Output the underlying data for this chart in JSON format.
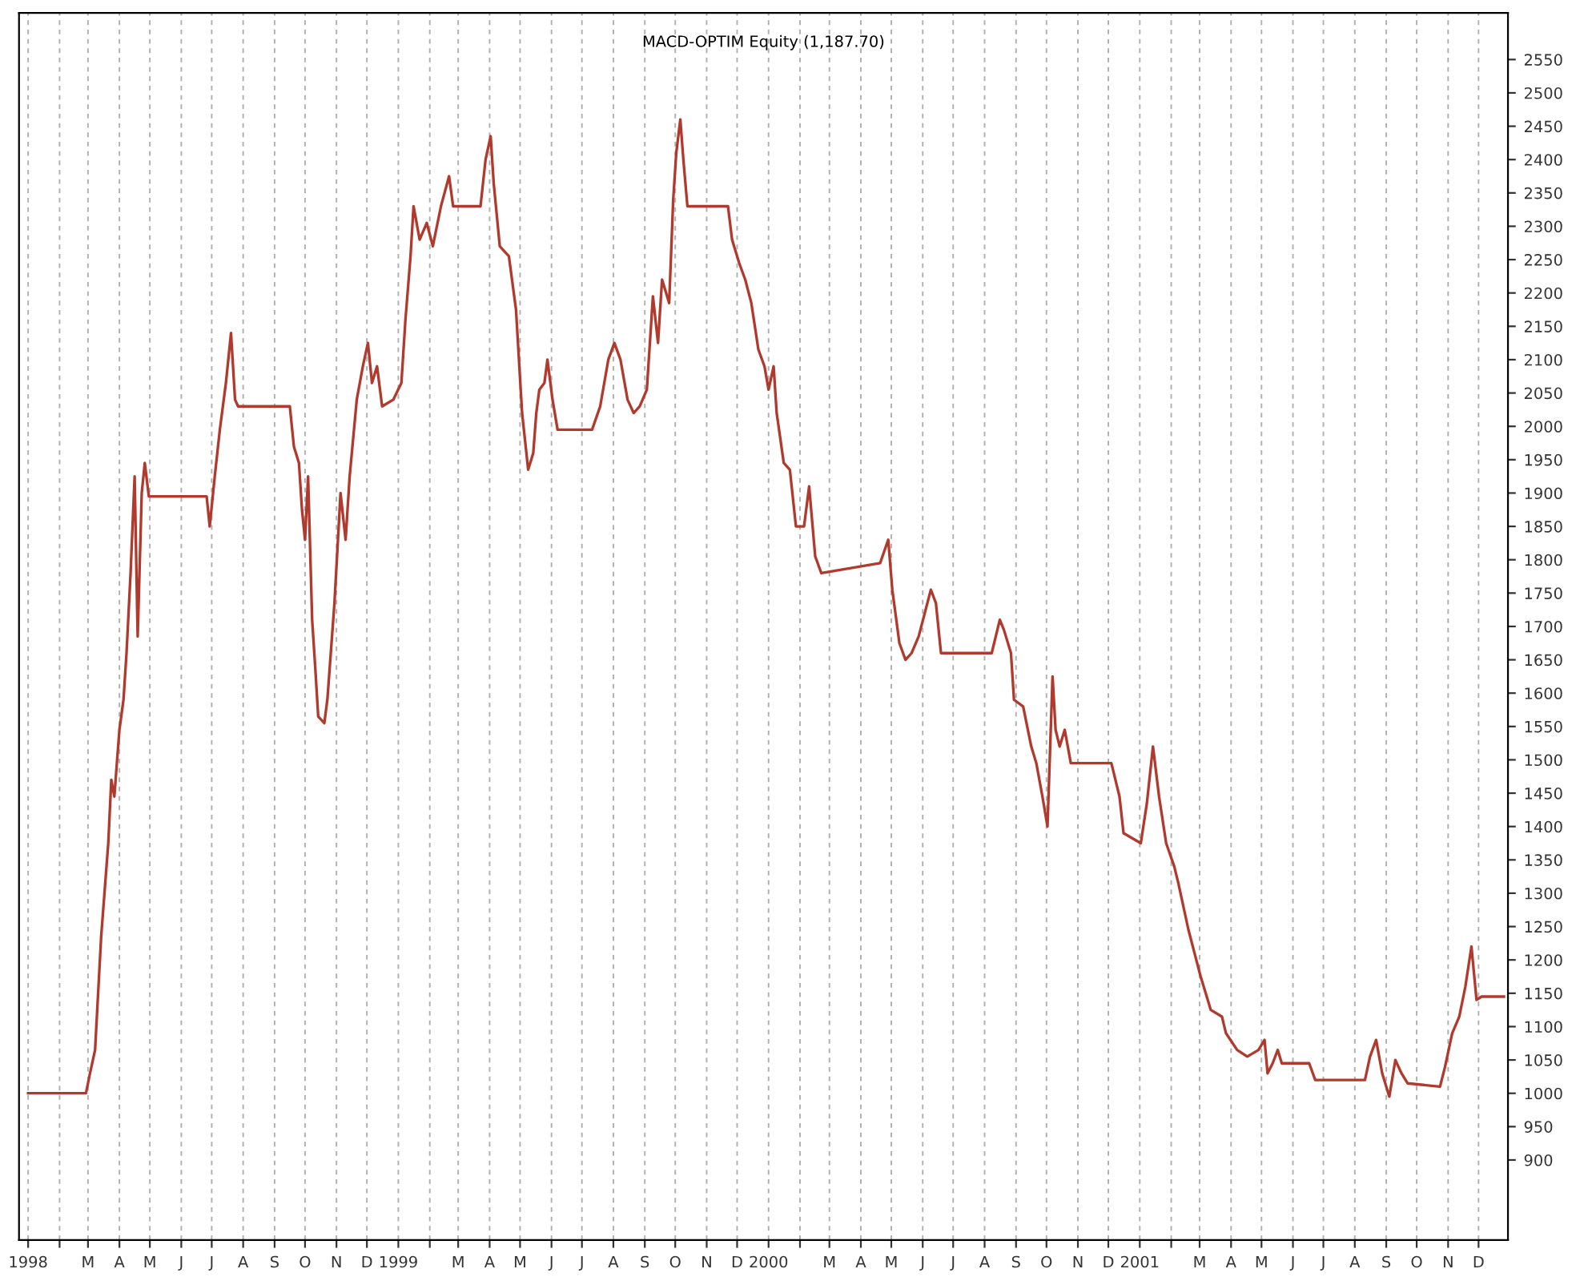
{
  "chart_data": {
    "type": "line",
    "title": "MACD-OPTIM Equity (1,187.70)",
    "x": [
      "1998-01-01",
      "1998-02-27",
      "1998-03-03",
      "1998-03-08",
      "1998-03-14",
      "1998-03-21",
      "1998-03-24",
      "1998-03-27",
      "1998-04-01",
      "1998-04-05",
      "1998-04-08",
      "1998-04-12",
      "1998-04-16",
      "1998-04-19",
      "1998-04-23",
      "1998-04-26",
      "1998-04-30",
      "1998-06-26",
      "1998-06-29",
      "1998-07-04",
      "1998-07-09",
      "1998-07-15",
      "1998-07-20",
      "1998-07-24",
      "1998-07-27",
      "1998-09-16",
      "1998-09-20",
      "1998-09-25",
      "1998-09-28",
      "1998-10-01",
      "1998-10-04",
      "1998-10-08",
      "1998-10-11",
      "1998-10-14",
      "1998-10-20",
      "1998-10-23",
      "1998-10-30",
      "1998-11-05",
      "1998-11-10",
      "1998-11-14",
      "1998-11-21",
      "1998-11-27",
      "1998-12-02",
      "1998-12-06",
      "1998-12-11",
      "1998-12-16",
      "1998-12-27",
      "1999-01-04",
      "1999-01-08",
      "1999-01-13",
      "1999-01-16",
      "1999-01-22",
      "1999-01-29",
      "1999-02-04",
      "1999-02-12",
      "1999-02-20",
      "1999-02-24",
      "1999-03-23",
      "1999-03-28",
      "1999-04-02",
      "1999-04-05",
      "1999-04-11",
      "1999-04-20",
      "1999-04-27",
      "1999-05-03",
      "1999-05-09",
      "1999-05-14",
      "1999-05-17",
      "1999-05-20",
      "1999-05-25",
      "1999-05-28",
      "1999-06-02",
      "1999-06-07",
      "1999-07-11",
      "1999-07-19",
      "1999-07-27",
      "1999-08-02",
      "1999-08-08",
      "1999-08-15",
      "1999-08-21",
      "1999-08-27",
      "1999-09-03",
      "1999-09-09",
      "1999-09-14",
      "1999-09-18",
      "1999-09-25",
      "1999-09-29",
      "1999-10-02",
      "1999-10-06",
      "1999-10-09",
      "1999-10-13",
      "1999-11-22",
      "1999-11-26",
      "1999-12-03",
      "1999-12-09",
      "1999-12-15",
      "1999-12-22",
      "1999-12-28",
      "2000-01-01",
      "2000-01-06",
      "2000-01-09",
      "2000-01-16",
      "2000-01-22",
      "2000-01-28",
      "2000-02-05",
      "2000-02-10",
      "2000-02-16",
      "2000-02-22",
      "2000-04-20",
      "2000-04-28",
      "2000-05-02",
      "2000-05-09",
      "2000-05-15",
      "2000-05-21",
      "2000-05-28",
      "2000-06-03",
      "2000-06-09",
      "2000-06-14",
      "2000-06-19",
      "2000-08-08",
      "2000-08-16",
      "2000-08-20",
      "2000-08-27",
      "2000-08-30",
      "2000-09-08",
      "2000-09-16",
      "2000-09-21",
      "2000-09-27",
      "2000-10-02",
      "2000-10-07",
      "2000-10-10",
      "2000-10-14",
      "2000-10-19",
      "2000-10-25",
      "2000-12-04",
      "2000-12-12",
      "2000-12-16",
      "2001-01-02",
      "2001-01-08",
      "2001-01-14",
      "2001-01-20",
      "2001-01-27",
      "2001-02-04",
      "2001-02-08",
      "2001-02-18",
      "2001-02-24",
      "2001-03-02",
      "2001-03-07",
      "2001-03-12",
      "2001-03-23",
      "2001-03-27",
      "2001-04-07",
      "2001-04-17",
      "2001-04-28",
      "2001-05-04",
      "2001-05-07",
      "2001-05-12",
      "2001-05-17",
      "2001-05-21",
      "2001-06-17",
      "2001-06-23",
      "2001-08-11",
      "2001-08-16",
      "2001-08-22",
      "2001-08-28",
      "2001-09-04",
      "2001-09-10",
      "2001-09-16",
      "2001-09-22",
      "2001-10-24",
      "2001-10-29",
      "2001-11-05",
      "2001-11-12",
      "2001-11-18",
      "2001-11-24",
      "2001-11-29",
      "2001-12-04",
      "2001-12-26"
    ],
    "series": [
      {
        "color": "#b03a2e",
        "values": [
          1000,
          1000,
          1030,
          1065,
          1235,
          1375,
          1470,
          1445,
          1545,
          1590,
          1660,
          1780,
          1925,
          1685,
          1900,
          1945,
          1895,
          1895,
          1850,
          1925,
          1995,
          2065,
          2140,
          2040,
          2030,
          2030,
          1970,
          1945,
          1875,
          1830,
          1925,
          1710,
          1640,
          1565,
          1555,
          1590,
          1735,
          1900,
          1830,
          1925,
          2040,
          2090,
          2125,
          2065,
          2090,
          2030,
          2040,
          2065,
          2160,
          2255,
          2330,
          2280,
          2305,
          2270,
          2330,
          2375,
          2330,
          2330,
          2400,
          2435,
          2365,
          2270,
          2255,
          2175,
          2020,
          1935,
          1960,
          2020,
          2055,
          2065,
          2100,
          2040,
          1995,
          1995,
          2030,
          2100,
          2125,
          2100,
          2040,
          2020,
          2030,
          2055,
          2195,
          2125,
          2220,
          2185,
          2340,
          2410,
          2460,
          2400,
          2330,
          2330,
          2280,
          2245,
          2220,
          2185,
          2115,
          2090,
          2055,
          2090,
          2020,
          1945,
          1935,
          1850,
          1850,
          1910,
          1805,
          1780,
          1795,
          1830,
          1755,
          1675,
          1650,
          1660,
          1685,
          1720,
          1755,
          1735,
          1660,
          1660,
          1710,
          1695,
          1660,
          1590,
          1580,
          1520,
          1495,
          1445,
          1400,
          1625,
          1545,
          1520,
          1545,
          1495,
          1495,
          1445,
          1390,
          1375,
          1435,
          1520,
          1445,
          1375,
          1340,
          1315,
          1245,
          1210,
          1175,
          1150,
          1125,
          1115,
          1090,
          1065,
          1055,
          1065,
          1080,
          1030,
          1045,
          1065,
          1045,
          1045,
          1020,
          1020,
          1055,
          1080,
          1030,
          995,
          1050,
          1030,
          1015,
          1010,
          1040,
          1090,
          1115,
          1160,
          1220,
          1140,
          1145,
          1145
        ]
      }
    ],
    "xlim": [
      "1997-12-23",
      "2001-12-30"
    ],
    "xticks": [
      {
        "value": "1998-01-01",
        "label": "1998"
      },
      {
        "value": "1998-02-01",
        "label": null
      },
      {
        "value": "1998-03-01",
        "label": "M"
      },
      {
        "value": "1998-04-01",
        "label": "A"
      },
      {
        "value": "1998-05-01",
        "label": "M"
      },
      {
        "value": "1998-06-01",
        "label": "J"
      },
      {
        "value": "1998-07-01",
        "label": "J"
      },
      {
        "value": "1998-08-01",
        "label": "A"
      },
      {
        "value": "1998-09-01",
        "label": "S"
      },
      {
        "value": "1998-10-01",
        "label": "O"
      },
      {
        "value": "1998-11-01",
        "label": "N"
      },
      {
        "value": "1998-12-01",
        "label": "D"
      },
      {
        "value": "1999-01-01",
        "label": "1999"
      },
      {
        "value": "1999-02-01",
        "label": null
      },
      {
        "value": "1999-03-01",
        "label": "M"
      },
      {
        "value": "1999-04-01",
        "label": "A"
      },
      {
        "value": "1999-05-01",
        "label": "M"
      },
      {
        "value": "1999-06-01",
        "label": "J"
      },
      {
        "value": "1999-07-01",
        "label": "J"
      },
      {
        "value": "1999-08-01",
        "label": "A"
      },
      {
        "value": "1999-09-01",
        "label": "S"
      },
      {
        "value": "1999-10-01",
        "label": "O"
      },
      {
        "value": "1999-11-01",
        "label": "N"
      },
      {
        "value": "1999-12-01",
        "label": "D"
      },
      {
        "value": "2000-01-01",
        "label": "2000"
      },
      {
        "value": "2000-02-01",
        "label": null
      },
      {
        "value": "2000-03-01",
        "label": "M"
      },
      {
        "value": "2000-04-01",
        "label": "A"
      },
      {
        "value": "2000-05-01",
        "label": "M"
      },
      {
        "value": "2000-06-01",
        "label": "J"
      },
      {
        "value": "2000-07-01",
        "label": "J"
      },
      {
        "value": "2000-08-01",
        "label": "A"
      },
      {
        "value": "2000-09-01",
        "label": "S"
      },
      {
        "value": "2000-10-01",
        "label": "O"
      },
      {
        "value": "2000-11-01",
        "label": "N"
      },
      {
        "value": "2000-12-01",
        "label": "D"
      },
      {
        "value": "2001-01-01",
        "label": "2001"
      },
      {
        "value": "2001-02-01",
        "label": null
      },
      {
        "value": "2001-03-01",
        "label": "M"
      },
      {
        "value": "2001-04-01",
        "label": "A"
      },
      {
        "value": "2001-05-01",
        "label": "M"
      },
      {
        "value": "2001-06-01",
        "label": "J"
      },
      {
        "value": "2001-07-01",
        "label": "J"
      },
      {
        "value": "2001-08-01",
        "label": "A"
      },
      {
        "value": "2001-09-01",
        "label": "S"
      },
      {
        "value": "2001-10-01",
        "label": "O"
      },
      {
        "value": "2001-11-01",
        "label": "N"
      },
      {
        "value": "2001-12-01",
        "label": "D"
      }
    ],
    "ylim": [
      780,
      2620
    ],
    "yticks": [
      900,
      950,
      1000,
      1050,
      1100,
      1150,
      1200,
      1250,
      1300,
      1350,
      1400,
      1450,
      1500,
      1550,
      1600,
      1650,
      1700,
      1750,
      1800,
      1850,
      1900,
      1950,
      2000,
      2050,
      2100,
      2150,
      2200,
      2250,
      2300,
      2350,
      2400,
      2450,
      2500,
      2550
    ],
    "grid": "x",
    "legend": false
  }
}
